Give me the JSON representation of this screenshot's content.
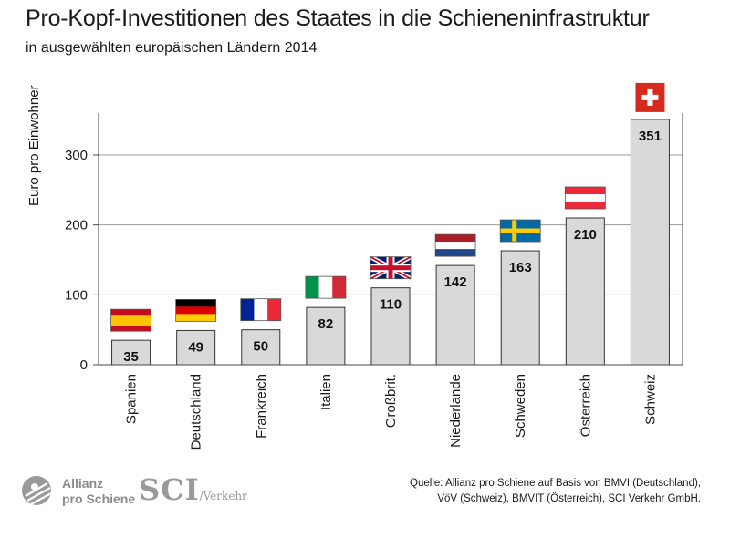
{
  "chart_data": {
    "type": "bar",
    "title": "Pro-Kopf-Investitionen des Staates in die Schieneninfrastruktur",
    "subtitle": "in ausgewählten europäischen Ländern 2014",
    "ylabel": "Euro pro Einwohner",
    "xlabel": "",
    "ylim": [
      0,
      360
    ],
    "yticks": [
      0,
      100,
      200,
      300
    ],
    "grid": true,
    "bar_color": "#d9d9d9",
    "categories": [
      "Spanien",
      "Deutschland",
      "Frankreich",
      "Italien",
      "Großbrit.",
      "Niederlande",
      "Schweden",
      "Österreich",
      "Schweiz"
    ],
    "values": [
      35,
      49,
      50,
      82,
      110,
      142,
      163,
      210,
      351
    ],
    "data_labels": [
      "35",
      "49",
      "50",
      "82",
      "110",
      "142",
      "163",
      "210",
      "351"
    ],
    "flags": [
      "spain-flag-icon",
      "germany-flag-icon",
      "france-flag-icon",
      "italy-flag-icon",
      "uk-flag-icon",
      "netherlands-flag-icon",
      "sweden-flag-icon",
      "austria-flag-icon",
      "switzerland-flag-icon"
    ]
  },
  "source": {
    "line1": "Quelle: Allianz pro Schiene auf Basis von BMVI (Deutschland),",
    "line2": "VöV (Schweiz), BMVIT (Österreich), SCI Verkehr GmbH."
  },
  "logos": {
    "allianz": "Allianz\npro Schiene",
    "sci_main": "SCI",
    "sci_sub": "/Verkehr"
  }
}
